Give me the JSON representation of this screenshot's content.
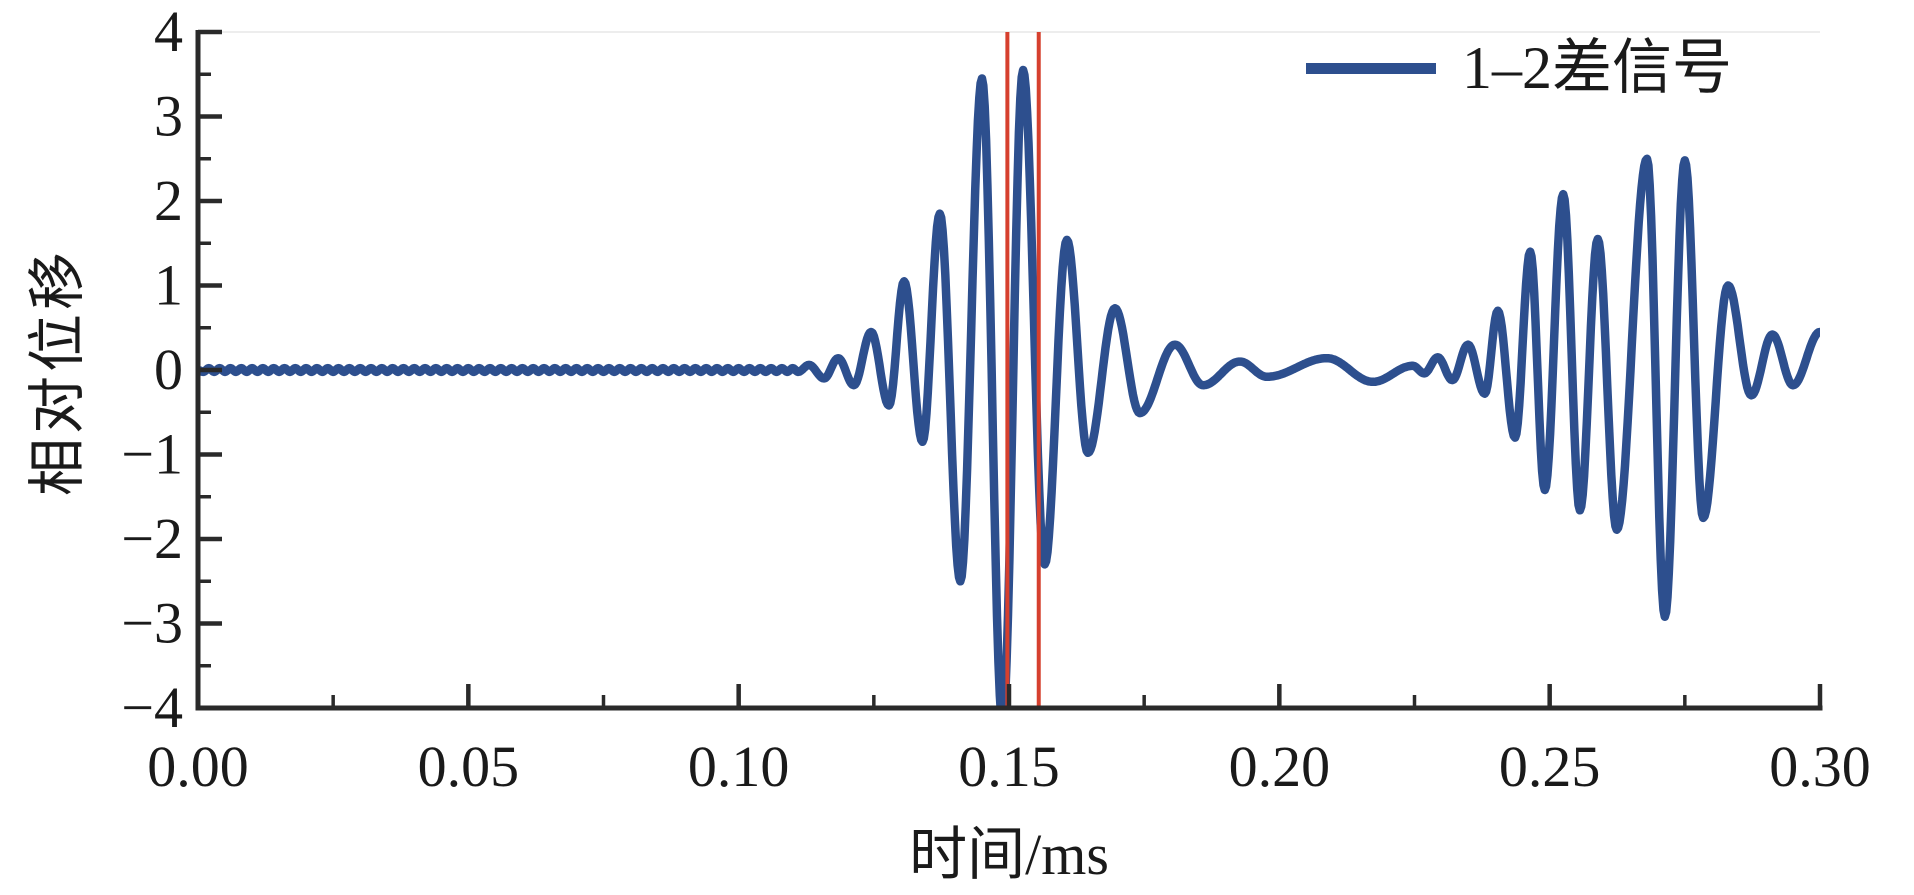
{
  "figure": {
    "background": "#ffffff",
    "axis_color": "#2a2a2a"
  },
  "chart_data": {
    "type": "line",
    "title": "",
    "xlabel": "时间/ms",
    "ylabel": "相对位移",
    "xlim": [
      0,
      0.3
    ],
    "ylim": [
      -4,
      4
    ],
    "grid": false,
    "x_major_ticks": {
      "values": [
        0.0,
        0.05,
        0.1,
        0.15,
        0.2,
        0.25,
        0.3
      ],
      "labels": [
        "0.00",
        "0.05",
        "0.10",
        "0.15",
        "0.20",
        "0.25",
        "0.30"
      ]
    },
    "x_minor_tick_values": [
      0.025,
      0.075,
      0.125,
      0.175,
      0.225,
      0.275
    ],
    "y_major_ticks": {
      "values": [
        4,
        3,
        2,
        1,
        0,
        -1,
        -2,
        -3,
        -4
      ],
      "labels": [
        "4",
        "3",
        "2",
        "1",
        "0",
        "−1",
        "−2",
        "−3",
        "−4"
      ]
    },
    "y_minor_tick_values": [
      3.5,
      2.5,
      1.5,
      0.5,
      -0.5,
      -1.5,
      -2.5,
      -3.5
    ],
    "legend": {
      "position": "upper right",
      "entries": [
        {
          "label": "1–2差信号",
          "color": "#2d4f8e"
        }
      ]
    },
    "vertical_markers": {
      "description": "red time-pick lines spanning full y-range",
      "color": "#d6402e",
      "line_width": 4,
      "t_values": [
        0.1497,
        0.1555
      ]
    },
    "series": [
      {
        "name": "1–2差信号",
        "color": "#2d4f8e",
        "line_width": 8.5,
        "baseline_ripple": {
          "t_start": 0,
          "t_end": 0.1115,
          "amplitude": 0.022,
          "period": 0.002
        },
        "note": "difference signal: quiet baseline, first wave packet ~0.112-0.19 ms (trough at 0.1488 ms clipped below -4), low-amplitude coda, second wave packet ~0.235-0.30 ms",
        "extrema_points": [
          [
            0.113,
            0.06
          ],
          [
            0.1158,
            -0.1
          ],
          [
            0.1184,
            0.14
          ],
          [
            0.1213,
            -0.18
          ],
          [
            0.1245,
            0.45
          ],
          [
            0.1278,
            -0.42
          ],
          [
            0.1306,
            1.05
          ],
          [
            0.134,
            -0.85
          ],
          [
            0.1372,
            1.85
          ],
          [
            0.141,
            -2.5
          ],
          [
            0.145,
            3.45
          ],
          [
            0.1488,
            -4.18
          ],
          [
            0.1526,
            3.55
          ],
          [
            0.1566,
            -2.3
          ],
          [
            0.1607,
            1.54
          ],
          [
            0.1646,
            -0.98
          ],
          [
            0.1696,
            0.73
          ],
          [
            0.1742,
            -0.51
          ],
          [
            0.1807,
            0.3
          ],
          [
            0.1859,
            -0.18
          ],
          [
            0.1927,
            0.1
          ],
          [
            0.1977,
            -0.08
          ],
          [
            0.2088,
            0.14
          ],
          [
            0.2173,
            -0.14
          ],
          [
            0.2247,
            0.05
          ],
          [
            0.2268,
            -0.04
          ],
          [
            0.2293,
            0.15
          ],
          [
            0.232,
            -0.12
          ],
          [
            0.2349,
            0.3
          ],
          [
            0.238,
            -0.28
          ],
          [
            0.2404,
            0.7
          ],
          [
            0.2436,
            -0.8
          ],
          [
            0.2464,
            1.4
          ],
          [
            0.2491,
            -1.42
          ],
          [
            0.2525,
            2.08
          ],
          [
            0.2556,
            -1.66
          ],
          [
            0.2589,
            1.55
          ],
          [
            0.2624,
            -1.89
          ],
          [
            0.268,
            2.5
          ],
          [
            0.2713,
            -2.92
          ],
          [
            0.275,
            2.48
          ],
          [
            0.2784,
            -1.75
          ],
          [
            0.283,
            1.0
          ],
          [
            0.2873,
            -0.3
          ],
          [
            0.2912,
            0.42
          ],
          [
            0.295,
            -0.18
          ],
          [
            0.3,
            0.45
          ]
        ]
      }
    ]
  }
}
